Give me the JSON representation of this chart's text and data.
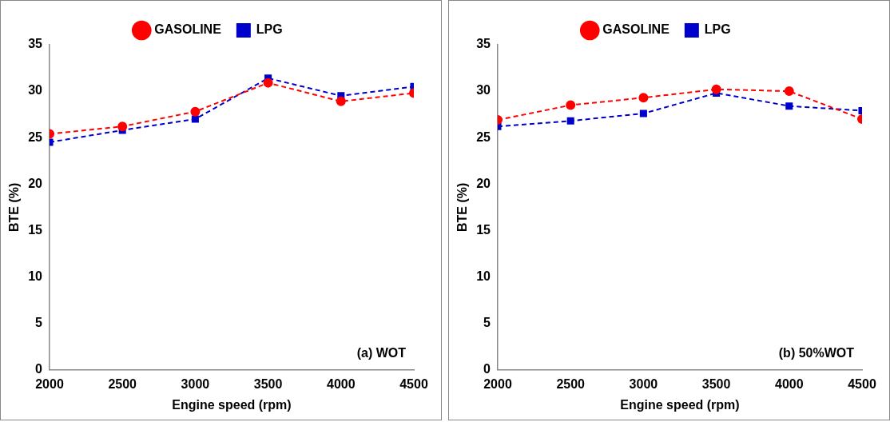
{
  "chart_data": [
    {
      "type": "line",
      "xlabel": "Engine speed (rpm)",
      "ylabel": "BTE (%)",
      "x": [
        2000,
        2500,
        3000,
        3500,
        4000,
        4500
      ],
      "xlim": [
        2000,
        4500
      ],
      "xticks": [
        2000,
        2500,
        3000,
        3500,
        4000,
        4500
      ],
      "ylim": [
        0,
        35
      ],
      "yticks": [
        0,
        5,
        10,
        15,
        20,
        25,
        30,
        35
      ],
      "legend": "top",
      "grid": false,
      "line_style": "dashed",
      "annotations": [
        "(a) WOT"
      ],
      "series": [
        {
          "name": "GASOLINE",
          "color": "#ff0000",
          "marker": "circle",
          "values": [
            25.4,
            26.2,
            27.8,
            30.9,
            28.9,
            29.8
          ]
        },
        {
          "name": "LPG",
          "color": "#0000cc",
          "marker": "square",
          "values": [
            24.5,
            25.8,
            27.0,
            31.4,
            29.5,
            30.5
          ]
        }
      ]
    },
    {
      "type": "line",
      "xlabel": "Engine speed (rpm)",
      "ylabel": "BTE (%)",
      "x": [
        2000,
        2500,
        3000,
        3500,
        4000,
        4500
      ],
      "xlim": [
        2000,
        4500
      ],
      "xticks": [
        2000,
        2500,
        3000,
        3500,
        4000,
        4500
      ],
      "ylim": [
        0,
        35
      ],
      "yticks": [
        0,
        5,
        10,
        15,
        20,
        25,
        30,
        35
      ],
      "legend": "top",
      "grid": false,
      "line_style": "dashed",
      "annotations": [
        "(b) 50%WOT"
      ],
      "series": [
        {
          "name": "GASOLINE",
          "color": "#ff0000",
          "marker": "circle",
          "values": [
            26.9,
            28.5,
            29.3,
            30.2,
            30.0,
            27.0
          ]
        },
        {
          "name": "LPG",
          "color": "#0000cc",
          "marker": "square",
          "values": [
            26.2,
            26.8,
            27.6,
            29.8,
            28.4,
            27.9
          ]
        }
      ]
    }
  ]
}
